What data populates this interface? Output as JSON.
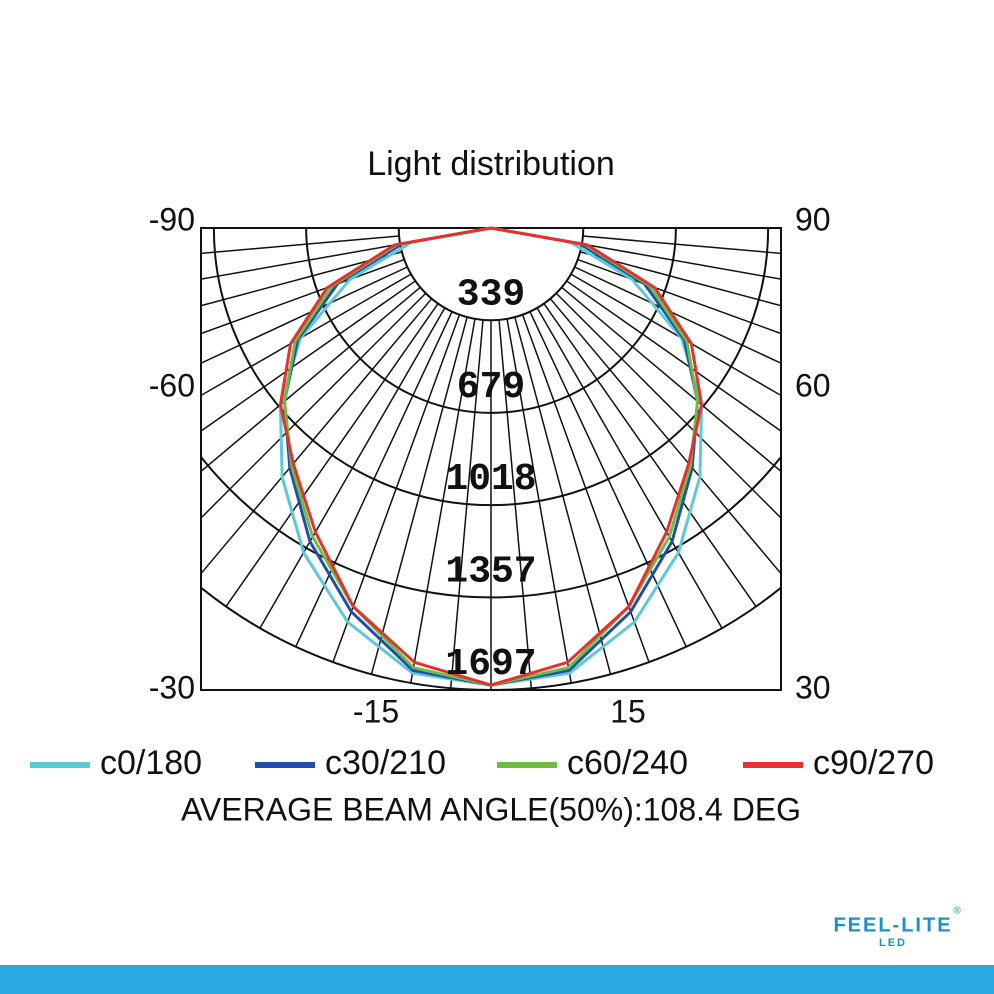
{
  "chart_data": {
    "type": "polar",
    "title": "Light distribution",
    "x": [
      0,
      10,
      20,
      30,
      40,
      50,
      60,
      70,
      80,
      90
    ],
    "series": [
      {
        "name": "c0/180",
        "color": "#5ec8d8",
        "values": [
          1679,
          1660,
          1540,
          1377,
          1194,
          1010,
          808,
          551,
          294,
          0
        ]
      },
      {
        "name": "c30/210",
        "color": "#1f4fa8",
        "values": [
          1679,
          1650,
          1500,
          1330,
          1150,
          990,
          820,
          600,
          330,
          0
        ]
      },
      {
        "name": "c60/240",
        "color": "#6cbd45",
        "values": [
          1679,
          1640,
          1480,
          1310,
          1140,
          990,
          830,
          620,
          350,
          0
        ]
      },
      {
        "name": "c90/270",
        "color": "#e8302e",
        "values": [
          1679,
          1620,
          1480,
          1290,
          1130,
          1010,
          850,
          640,
          360,
          0
        ]
      }
    ],
    "rlim": [
      0,
      1697
    ],
    "rticks": [
      339,
      679,
      1018,
      1357,
      1697
    ],
    "left_labels": [
      -90,
      -60,
      -30
    ],
    "right_labels": [
      90,
      60,
      30
    ],
    "bottom_labels": [
      -15,
      15
    ],
    "note": "AVERAGE BEAM ANGLE(50%):108.4  DEG"
  },
  "logo": {
    "brand": "FEEL-LITE",
    "sub": "LED",
    "mark": "®"
  }
}
